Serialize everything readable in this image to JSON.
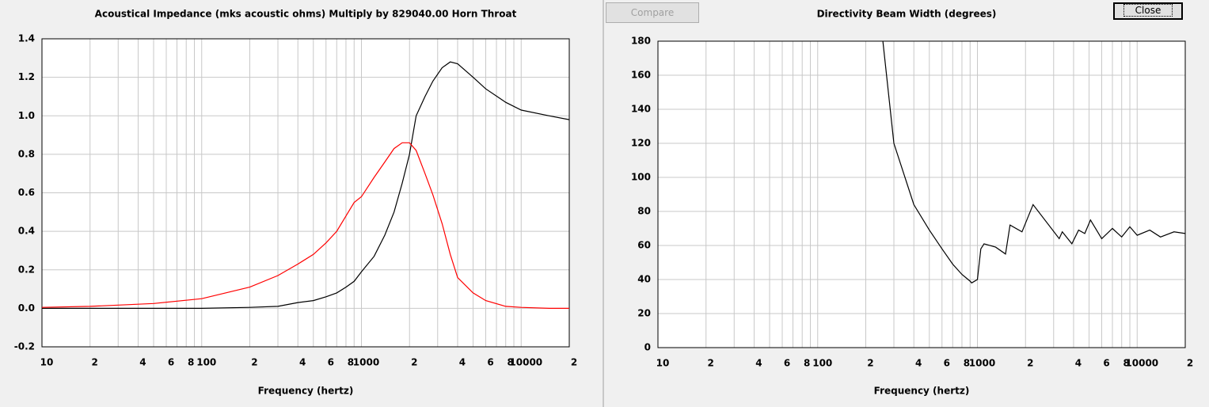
{
  "buttons": {
    "compare": "Compare",
    "close": "Close"
  },
  "chart_data": [
    {
      "type": "line",
      "title": "Acoustical Impedance (mks acoustic ohms)   Multiply by 829040.00   Horn Throat",
      "x_label": "Frequency (hertz)",
      "log_x": true,
      "grid": true,
      "xlim": [
        10,
        20000
      ],
      "ylim": [
        -0.2,
        1.4
      ],
      "xticks": [
        10,
        {
          "value": 20,
          "label": "2"
        },
        {
          "value": 30,
          "label": null
        },
        {
          "value": 40,
          "label": "4"
        },
        {
          "value": 50,
          "label": null
        },
        {
          "value": 60,
          "label": "6"
        },
        {
          "value": 70,
          "label": null
        },
        {
          "value": 80,
          "label": "8"
        },
        {
          "value": 90,
          "label": null
        },
        100,
        {
          "value": 200,
          "label": "2"
        },
        {
          "value": 300,
          "label": null
        },
        {
          "value": 400,
          "label": "4"
        },
        {
          "value": 500,
          "label": null
        },
        {
          "value": 600,
          "label": "6"
        },
        {
          "value": 700,
          "label": null
        },
        {
          "value": 800,
          "label": "8"
        },
        {
          "value": 900,
          "label": null
        },
        1000,
        {
          "value": 2000,
          "label": "2"
        },
        {
          "value": 3000,
          "label": null
        },
        {
          "value": 4000,
          "label": "4"
        },
        {
          "value": 5000,
          "label": null
        },
        {
          "value": 6000,
          "label": "6"
        },
        {
          "value": 7000,
          "label": null
        },
        {
          "value": 8000,
          "label": "8"
        },
        {
          "value": 9000,
          "label": null
        },
        10000,
        {
          "value": 20000,
          "label": "2"
        }
      ],
      "yticks": [
        -0.2,
        {
          "value": 0,
          "label": "0.0"
        },
        0.2,
        0.4,
        0.6,
        0.8,
        {
          "value": 1,
          "label": "1.0"
        },
        1.2,
        1.4
      ],
      "x": [
        10,
        20,
        50,
        100,
        200,
        300,
        400,
        500,
        600,
        700,
        800,
        900,
        1000,
        1200,
        1400,
        1600,
        1800,
        2000,
        2200,
        2500,
        2800,
        3200,
        3600,
        4000,
        5000,
        6000,
        8000,
        10000,
        15000,
        20000
      ],
      "series": [
        {
          "color": "#000000",
          "values": [
            0,
            0,
            0,
            0,
            0.005,
            0.01,
            0.03,
            0.04,
            0.06,
            0.08,
            0.11,
            0.14,
            0.19,
            0.27,
            0.38,
            0.5,
            0.65,
            0.8,
            1.0,
            1.1,
            1.18,
            1.25,
            1.28,
            1.27,
            1.2,
            1.14,
            1.07,
            1.03,
            1.0,
            0.98
          ]
        },
        {
          "color": "#ff0000",
          "values": [
            0.005,
            0.01,
            0.025,
            0.05,
            0.11,
            0.17,
            0.23,
            0.28,
            0.34,
            0.4,
            0.48,
            0.55,
            0.58,
            0.68,
            0.76,
            0.83,
            0.86,
            0.86,
            0.82,
            0.7,
            0.59,
            0.44,
            0.28,
            0.16,
            0.08,
            0.04,
            0.01,
            0.005,
            0,
            0
          ]
        }
      ]
    },
    {
      "type": "line",
      "title": "Directivity Beam Width (degrees)",
      "x_label": "Frequency (hertz)",
      "log_x": true,
      "grid": true,
      "xlim": [
        10,
        20000
      ],
      "ylim": [
        0,
        180
      ],
      "xticks": [
        10,
        {
          "value": 20,
          "label": "2"
        },
        {
          "value": 30,
          "label": null
        },
        {
          "value": 40,
          "label": "4"
        },
        {
          "value": 50,
          "label": null
        },
        {
          "value": 60,
          "label": "6"
        },
        {
          "value": 70,
          "label": null
        },
        {
          "value": 80,
          "label": "8"
        },
        {
          "value": 90,
          "label": null
        },
        100,
        {
          "value": 200,
          "label": "2"
        },
        {
          "value": 300,
          "label": null
        },
        {
          "value": 400,
          "label": "4"
        },
        {
          "value": 500,
          "label": null
        },
        {
          "value": 600,
          "label": "6"
        },
        {
          "value": 700,
          "label": null
        },
        {
          "value": 800,
          "label": "8"
        },
        {
          "value": 900,
          "label": null
        },
        1000,
        {
          "value": 2000,
          "label": "2"
        },
        {
          "value": 3000,
          "label": null
        },
        {
          "value": 4000,
          "label": "4"
        },
        {
          "value": 5000,
          "label": null
        },
        {
          "value": 6000,
          "label": "6"
        },
        {
          "value": 7000,
          "label": null
        },
        {
          "value": 8000,
          "label": "8"
        },
        {
          "value": 9000,
          "label": null
        },
        10000,
        {
          "value": 20000,
          "label": "2"
        }
      ],
      "yticks": [
        0,
        20,
        40,
        60,
        80,
        100,
        120,
        140,
        160,
        180
      ],
      "x": [
        256,
        300,
        400,
        500,
        600,
        700,
        800,
        900,
        920,
        1000,
        1050,
        1100,
        1300,
        1500,
        1600,
        1900,
        2230,
        3250,
        3400,
        3900,
        4300,
        4700,
        5100,
        6000,
        7000,
        8000,
        9000,
        10000,
        12000,
        14000,
        17000,
        20000
      ],
      "series": [
        {
          "color": "#000000",
          "values": [
            180,
            120,
            84,
            69,
            58,
            49,
            43,
            39,
            38,
            40,
            58,
            61,
            59,
            55,
            72,
            68,
            84,
            64,
            68,
            61,
            69,
            67,
            75,
            64,
            70,
            65,
            71,
            66,
            69,
            65,
            68,
            67
          ]
        }
      ]
    }
  ]
}
